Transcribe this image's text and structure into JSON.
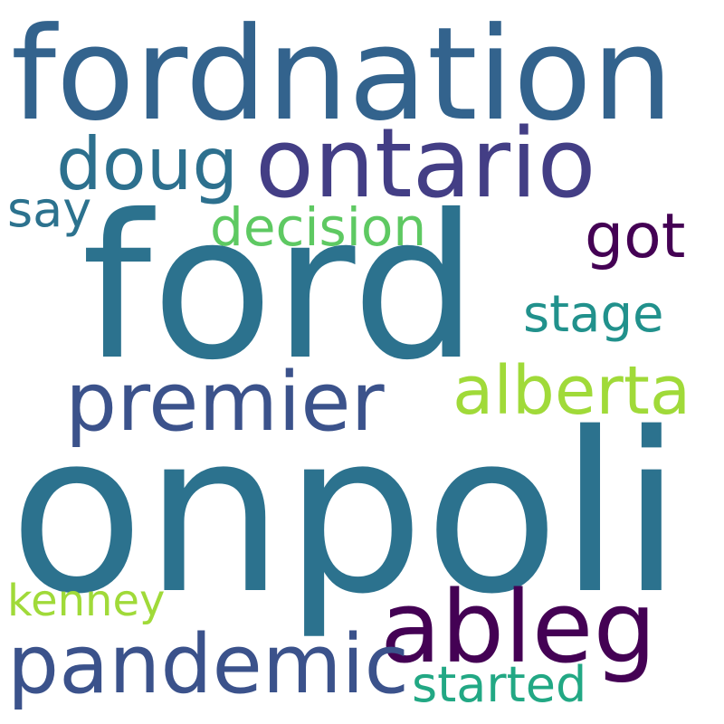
{
  "words": [
    {
      "text": "fordnation",
      "color": "#33638d"
    },
    {
      "text": "ontario",
      "color": "#433e85"
    },
    {
      "text": "doug",
      "color": "#2d708e"
    },
    {
      "text": "decision",
      "color": "#5ec962"
    },
    {
      "text": "say",
      "color": "#2c728e"
    },
    {
      "text": "got",
      "color": "#440154"
    },
    {
      "text": "ford",
      "color": "#2c728e"
    },
    {
      "text": "stage",
      "color": "#21918c"
    },
    {
      "text": "premier",
      "color": "#3b528b"
    },
    {
      "text": "alberta",
      "color": "#a0da39"
    },
    {
      "text": "onpoli",
      "color": "#2c728e"
    },
    {
      "text": "kenney",
      "color": "#a0da39"
    },
    {
      "text": "ableg",
      "color": "#440154"
    },
    {
      "text": "pandemic",
      "color": "#3b528b"
    },
    {
      "text": "started",
      "color": "#22a884"
    }
  ]
}
